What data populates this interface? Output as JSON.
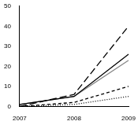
{
  "chart_data": {
    "type": "line",
    "categories": [
      "2007",
      "2008",
      "2009"
    ],
    "series": [
      {
        "color": "#000000",
        "line_style": "long_dash",
        "values": [
          0,
          6,
          40
        ]
      },
      {
        "color": "#000000",
        "line_style": "solid",
        "values": [
          1,
          5,
          26
        ]
      },
      {
        "color": "#888888",
        "line_style": "solid",
        "values": [
          1,
          5,
          23
        ]
      },
      {
        "color": "#000000",
        "line_style": "dashed",
        "values": [
          0,
          2,
          10
        ]
      },
      {
        "color": "#000000",
        "line_style": "dotted",
        "values": [
          0,
          1,
          5
        ]
      }
    ],
    "ylim": [
      0,
      50
    ],
    "yticks": [
      0,
      10,
      20,
      30,
      40,
      50
    ],
    "grid": false
  }
}
